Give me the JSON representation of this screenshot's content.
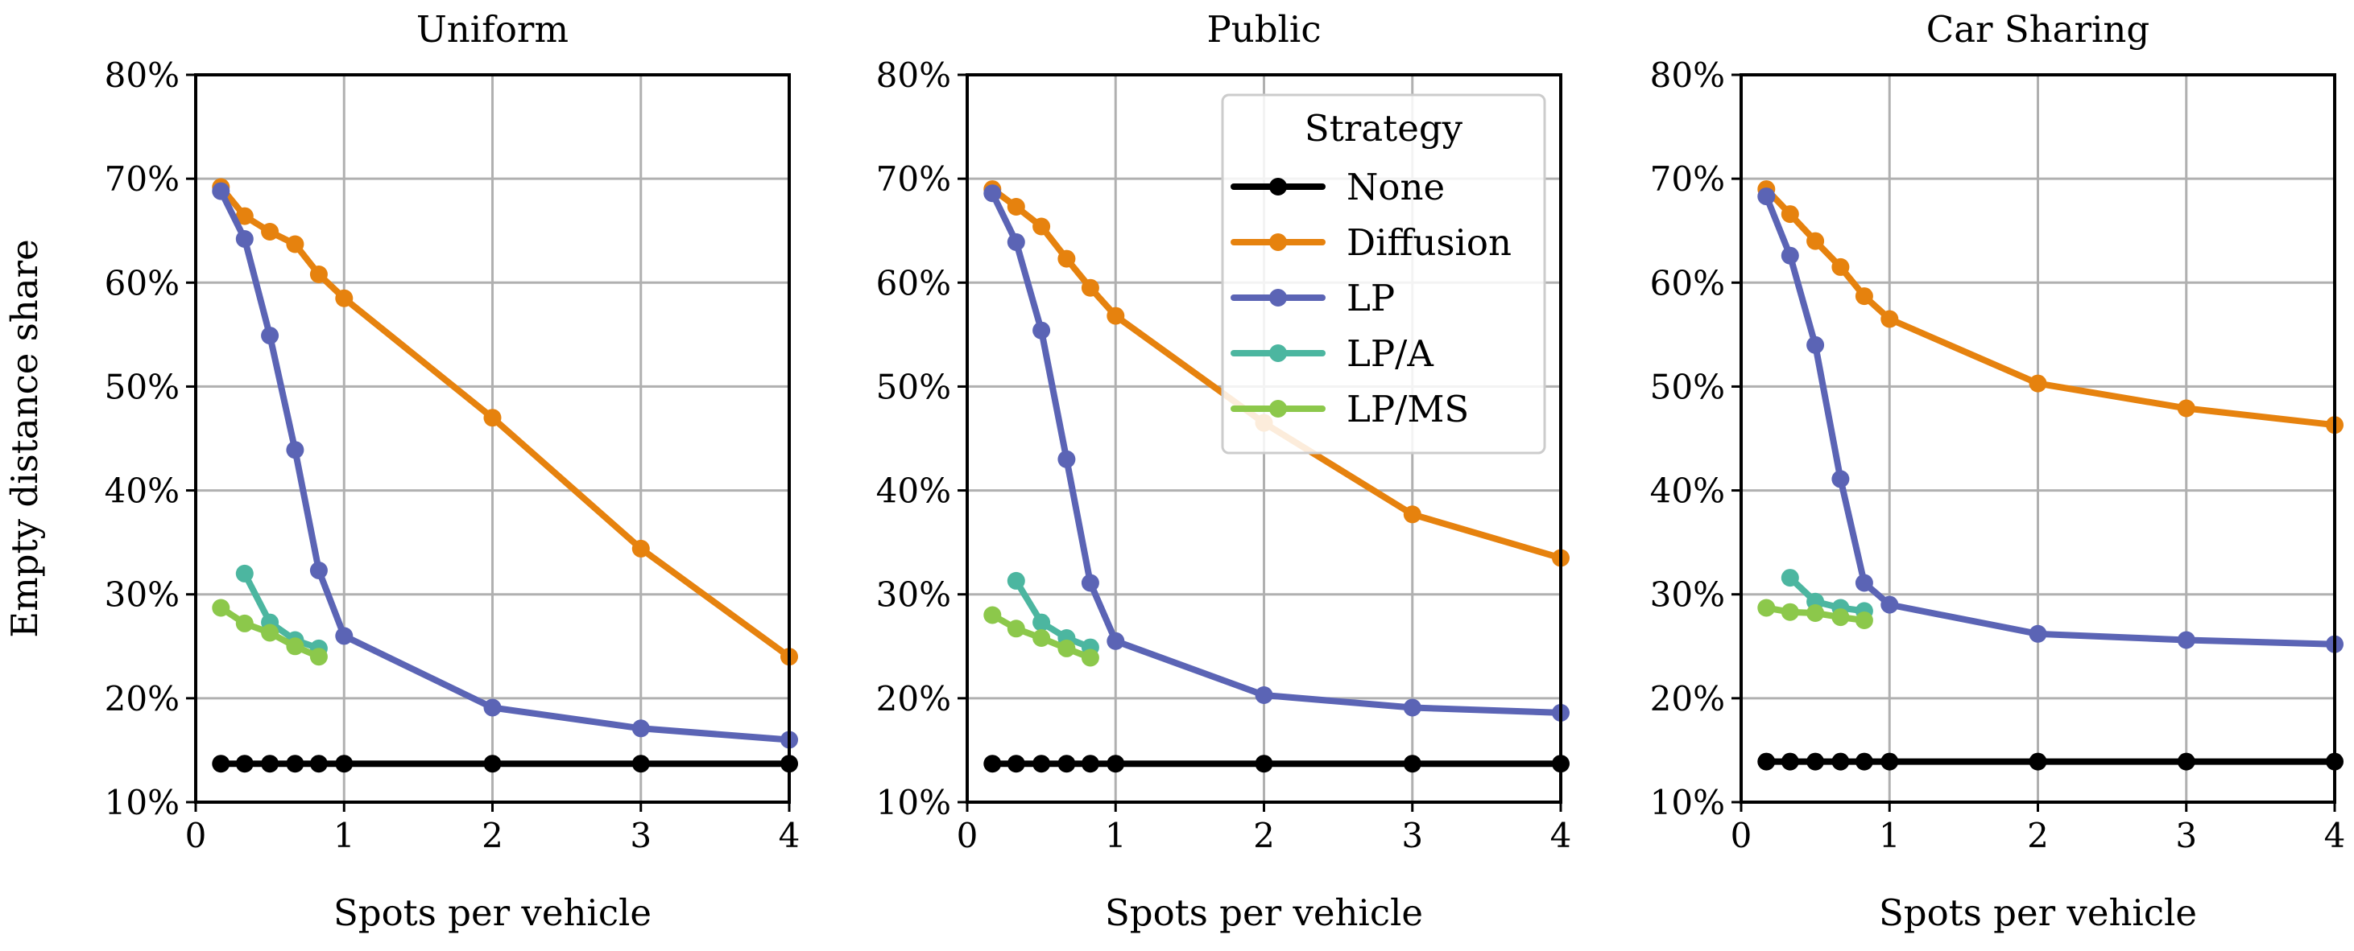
{
  "colors": {
    "None": "#000000",
    "Diffusion": "#e6820e",
    "LP": "#5b64b5",
    "LP/A": "#4cb6a0",
    "LP/MS": "#8cc84b"
  },
  "legend": {
    "title": "Strategy",
    "entries": [
      "None",
      "Diffusion",
      "LP",
      "LP/A",
      "LP/MS"
    ]
  },
  "chart_data": [
    {
      "type": "line",
      "title": "Uniform",
      "xlabel": "Spots per vehicle",
      "ylabel": "Empty distance share",
      "xlim": [
        0,
        4
      ],
      "ylim": [
        10,
        80
      ],
      "xticks": [
        "0",
        "1",
        "2",
        "3",
        "4"
      ],
      "yticks": [
        "10%",
        "20%",
        "30%",
        "40%",
        "50%",
        "60%",
        "70%",
        "80%"
      ],
      "series": [
        {
          "name": "None",
          "x": [
            0.17,
            0.33,
            0.5,
            0.67,
            0.83,
            1,
            2,
            3,
            4
          ],
          "values": [
            13.7,
            13.7,
            13.7,
            13.7,
            13.7,
            13.7,
            13.7,
            13.7,
            13.7
          ]
        },
        {
          "name": "Diffusion",
          "x": [
            0.17,
            0.33,
            0.5,
            0.67,
            0.83,
            1,
            2,
            3,
            4
          ],
          "values": [
            69.2,
            66.4,
            64.9,
            63.7,
            60.8,
            58.5,
            47.0,
            34.4,
            24.0
          ]
        },
        {
          "name": "LP",
          "x": [
            0.17,
            0.33,
            0.5,
            0.67,
            0.83,
            1,
            2,
            3,
            4
          ],
          "values": [
            68.8,
            64.2,
            54.9,
            43.9,
            32.3,
            26.0,
            19.1,
            17.1,
            16.0
          ]
        },
        {
          "name": "LP/A",
          "x": [
            0.33,
            0.5,
            0.67,
            0.83
          ],
          "values": [
            32.0,
            27.3,
            25.6,
            24.8
          ]
        },
        {
          "name": "LP/MS",
          "x": [
            0.17,
            0.33,
            0.5,
            0.67,
            0.83
          ],
          "values": [
            28.7,
            27.2,
            26.3,
            25.0,
            24.0
          ]
        }
      ]
    },
    {
      "type": "line",
      "title": "Public",
      "xlabel": "Spots per vehicle",
      "ylabel": "",
      "xlim": [
        0,
        4
      ],
      "ylim": [
        10,
        80
      ],
      "xticks": [
        "0",
        "1",
        "2",
        "3",
        "4"
      ],
      "yticks": [
        "10%",
        "20%",
        "30%",
        "40%",
        "50%",
        "60%",
        "70%",
        "80%"
      ],
      "series": [
        {
          "name": "None",
          "x": [
            0.17,
            0.33,
            0.5,
            0.67,
            0.83,
            1,
            2,
            3,
            4
          ],
          "values": [
            13.7,
            13.7,
            13.7,
            13.7,
            13.7,
            13.7,
            13.7,
            13.7,
            13.7
          ]
        },
        {
          "name": "Diffusion",
          "x": [
            0.17,
            0.33,
            0.5,
            0.67,
            0.83,
            1,
            2,
            3,
            4
          ],
          "values": [
            69.0,
            67.3,
            65.4,
            62.3,
            59.5,
            56.8,
            46.5,
            37.7,
            33.5
          ]
        },
        {
          "name": "LP",
          "x": [
            0.17,
            0.33,
            0.5,
            0.67,
            0.83,
            1,
            2,
            3,
            4
          ],
          "values": [
            68.6,
            63.9,
            55.4,
            43.0,
            31.1,
            25.5,
            20.3,
            19.1,
            18.6
          ]
        },
        {
          "name": "LP/A",
          "x": [
            0.33,
            0.5,
            0.67,
            0.83
          ],
          "values": [
            31.3,
            27.3,
            25.8,
            24.9
          ]
        },
        {
          "name": "LP/MS",
          "x": [
            0.17,
            0.33,
            0.5,
            0.67,
            0.83
          ],
          "values": [
            28.0,
            26.7,
            25.8,
            24.8,
            23.9
          ]
        }
      ]
    },
    {
      "type": "line",
      "title": "Car Sharing",
      "xlabel": "Spots per vehicle",
      "ylabel": "",
      "xlim": [
        0,
        4
      ],
      "ylim": [
        10,
        80
      ],
      "xticks": [
        "0",
        "1",
        "2",
        "3",
        "4"
      ],
      "yticks": [
        "10%",
        "20%",
        "30%",
        "40%",
        "50%",
        "60%",
        "70%",
        "80%"
      ],
      "series": [
        {
          "name": "None",
          "x": [
            0.17,
            0.33,
            0.5,
            0.67,
            0.83,
            1,
            2,
            3,
            4
          ],
          "values": [
            13.9,
            13.9,
            13.9,
            13.9,
            13.9,
            13.9,
            13.9,
            13.9,
            13.9
          ]
        },
        {
          "name": "Diffusion",
          "x": [
            0.17,
            0.33,
            0.5,
            0.67,
            0.83,
            1,
            2,
            3,
            4
          ],
          "values": [
            69.0,
            66.6,
            64.0,
            61.5,
            58.7,
            56.5,
            50.3,
            47.9,
            46.3
          ]
        },
        {
          "name": "LP",
          "x": [
            0.17,
            0.33,
            0.5,
            0.67,
            0.83,
            1,
            2,
            3,
            4
          ],
          "values": [
            68.3,
            62.6,
            54.0,
            41.1,
            31.1,
            29.0,
            26.2,
            25.6,
            25.2
          ]
        },
        {
          "name": "LP/A",
          "x": [
            0.33,
            0.5,
            0.67,
            0.83
          ],
          "values": [
            31.6,
            29.3,
            28.7,
            28.4
          ]
        },
        {
          "name": "LP/MS",
          "x": [
            0.17,
            0.33,
            0.5,
            0.67,
            0.83
          ],
          "values": [
            28.7,
            28.3,
            28.2,
            27.8,
            27.5
          ]
        }
      ]
    }
  ]
}
